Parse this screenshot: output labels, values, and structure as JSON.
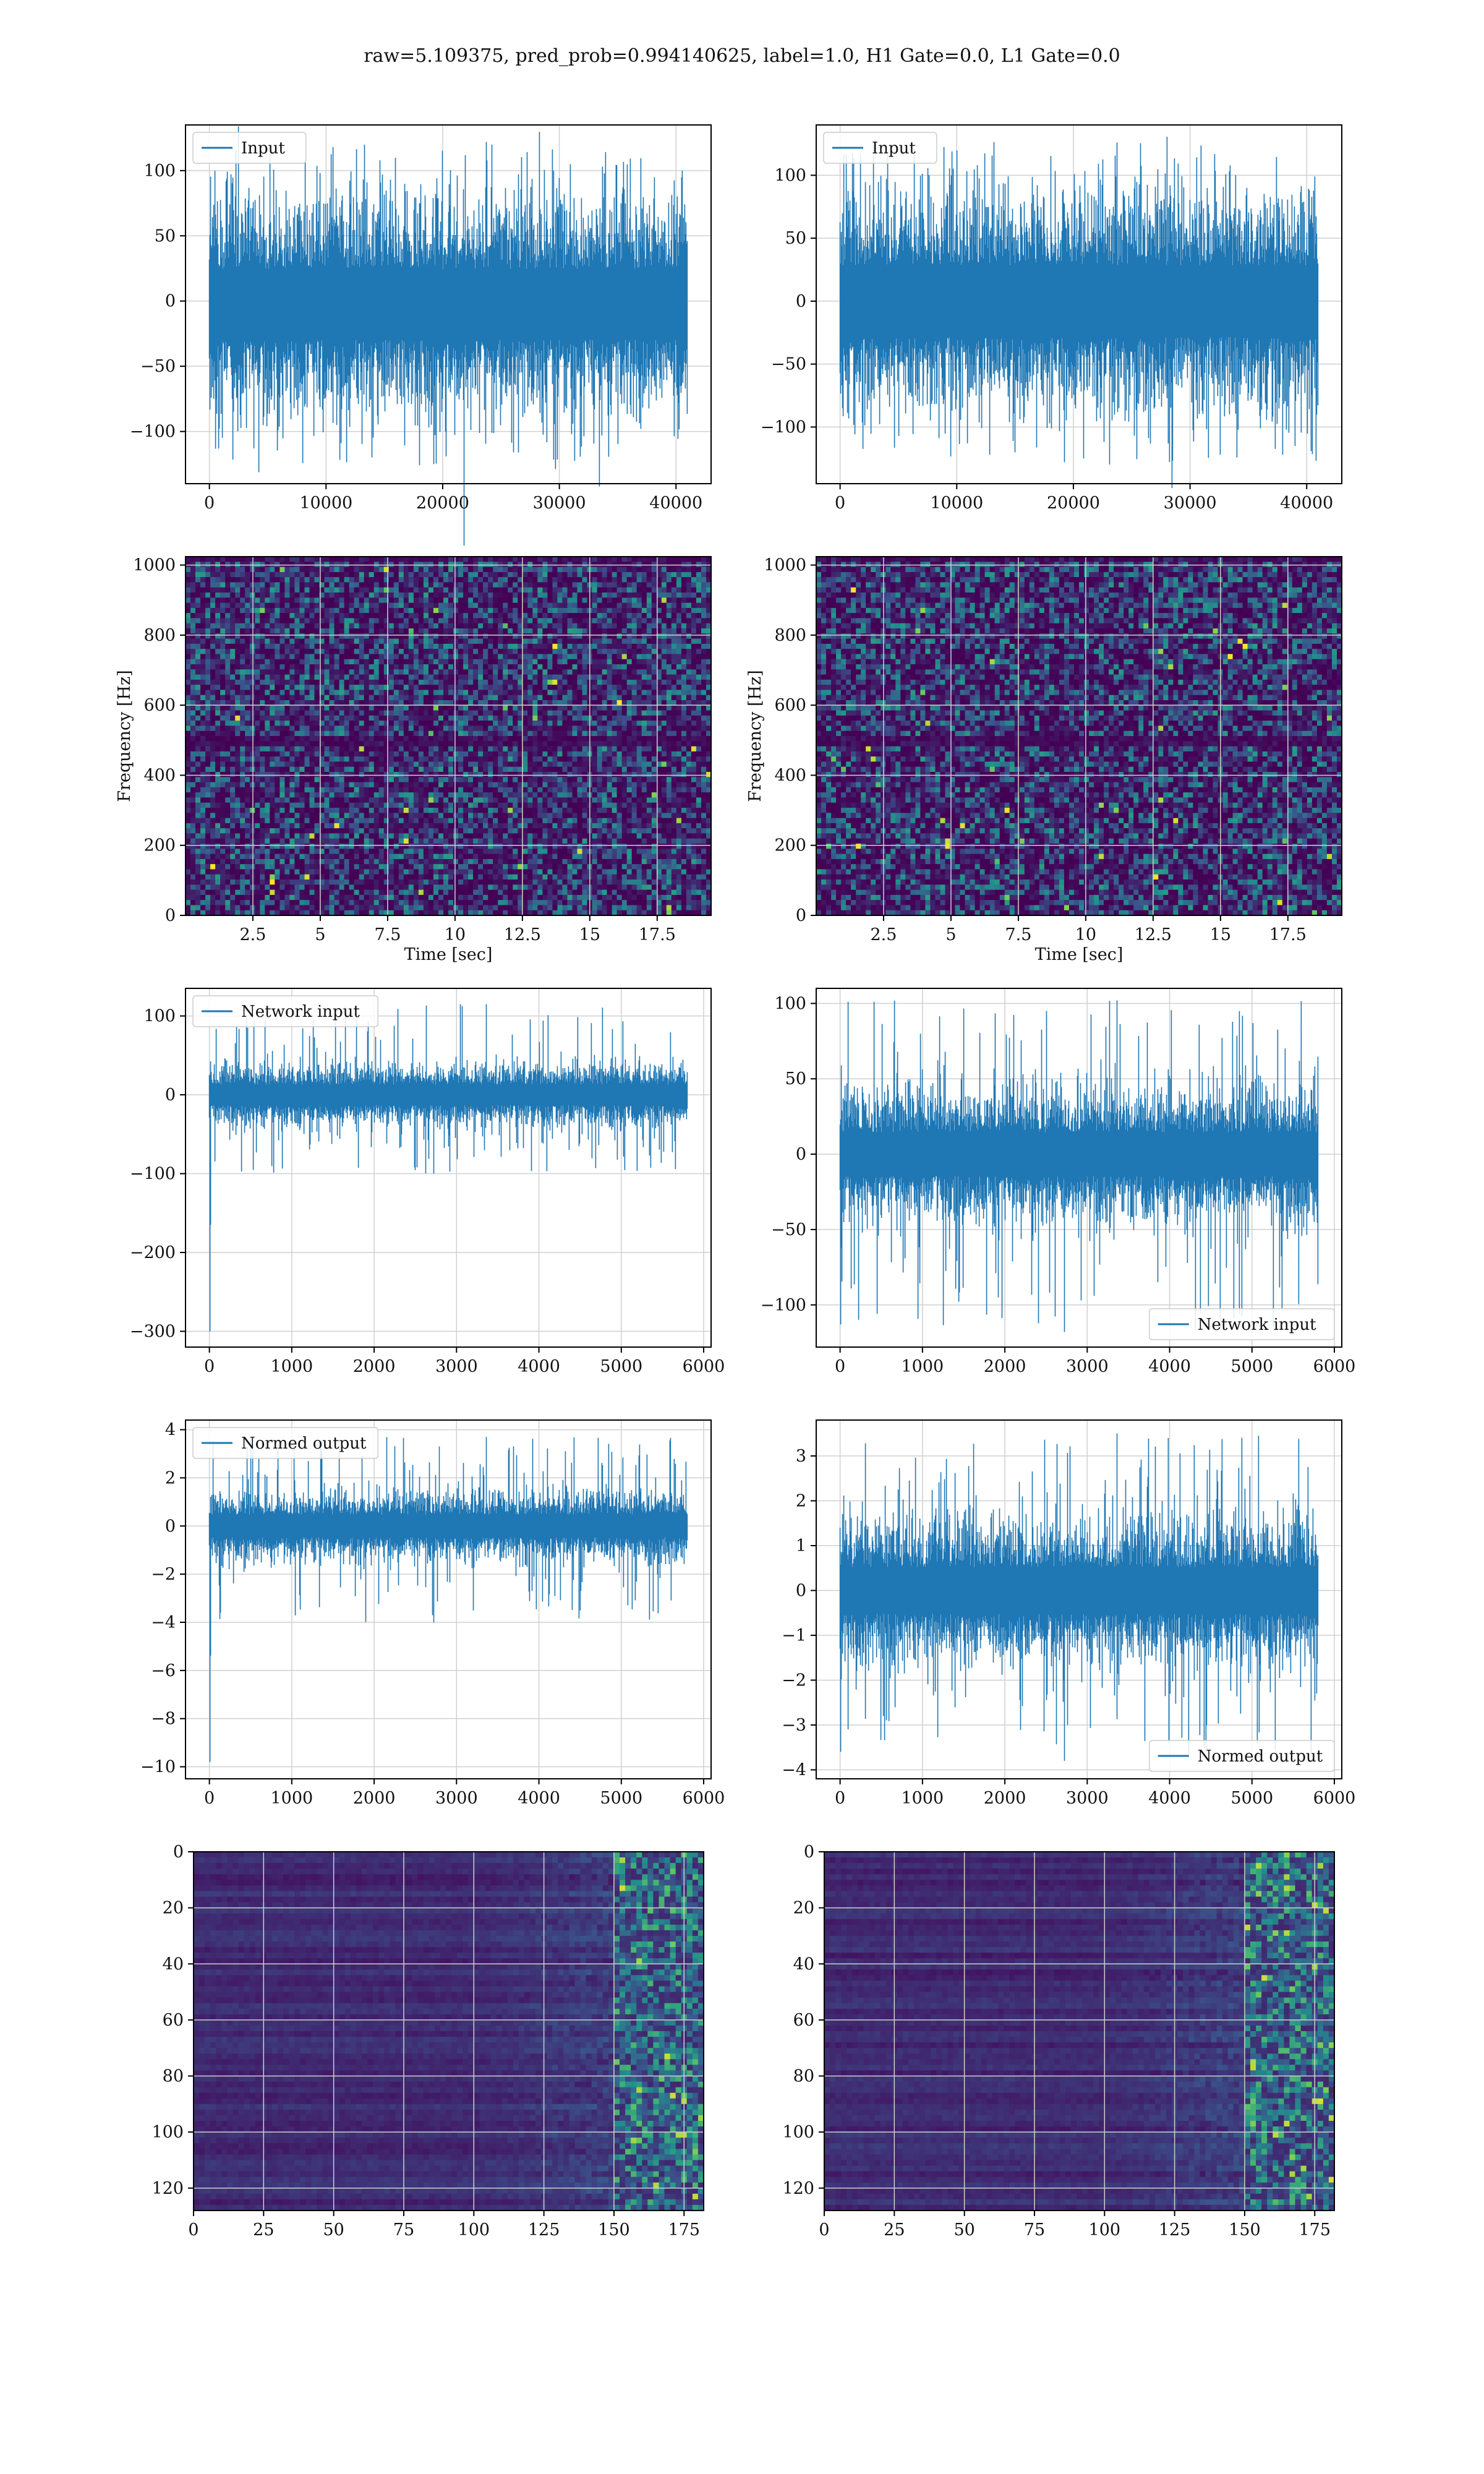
{
  "figure": {
    "title": "raw=5.109375, pred_prob=0.994140625, label=1.0, H1 Gate=0.0, L1 Gate=0.0",
    "line_color": "#1f77b4"
  },
  "chart_data": [
    {
      "id": "input-h1",
      "type": "line",
      "position": "row 1, left",
      "series": [
        {
          "name": "Input",
          "envelope_min": -125,
          "envelope_max": 122,
          "typical_band": [
            -55,
            50
          ]
        }
      ],
      "x_range": [
        0,
        40960
      ],
      "xlim": [
        -2048,
        43008
      ],
      "ylim": [
        -140,
        135
      ],
      "xticks": [
        0,
        10000,
        20000,
        30000,
        40000
      ],
      "yticks": [
        -100,
        -50,
        0,
        50,
        100
      ],
      "xlabel": "",
      "ylabel": "",
      "legend": "top-left",
      "grid": true
    },
    {
      "id": "input-l1",
      "type": "line",
      "position": "row 1, right",
      "series": [
        {
          "name": "Input",
          "envelope_min": -128,
          "envelope_max": 126,
          "typical_band": [
            -55,
            55
          ]
        }
      ],
      "x_range": [
        0,
        40960
      ],
      "xlim": [
        -2048,
        43008
      ],
      "ylim": [
        -145,
        140
      ],
      "xticks": [
        0,
        10000,
        20000,
        30000,
        40000
      ],
      "yticks": [
        -100,
        -50,
        0,
        50,
        100
      ],
      "xlabel": "",
      "ylabel": "",
      "legend": "top-left",
      "grid": true
    },
    {
      "id": "spectrogram-h1",
      "type": "heatmap",
      "position": "row 2, left",
      "xlim": [
        0,
        19.5
      ],
      "ylim": [
        0,
        1024
      ],
      "xticks": [
        2.5,
        5.0,
        7.5,
        10.0,
        12.5,
        15.0,
        17.5
      ],
      "yticks": [
        0,
        200,
        400,
        600,
        800,
        1000
      ],
      "xlabel": "Time [sec]",
      "ylabel": "Frequency [Hz]",
      "colormap": "viridis",
      "dark_band_hz": 500,
      "grid": true
    },
    {
      "id": "spectrogram-l1",
      "type": "heatmap",
      "position": "row 2, right",
      "xlim": [
        0,
        19.5
      ],
      "ylim": [
        0,
        1024
      ],
      "xticks": [
        2.5,
        5.0,
        7.5,
        10.0,
        12.5,
        15.0,
        17.5
      ],
      "yticks": [
        0,
        200,
        400,
        600,
        800,
        1000
      ],
      "xlabel": "Time [sec]",
      "ylabel": "Frequency [Hz]",
      "colormap": "viridis",
      "dark_band_hz": 500,
      "grid": true
    },
    {
      "id": "network-input-h1",
      "type": "line",
      "position": "row 3, left",
      "series": [
        {
          "name": "Network input",
          "envelope_min": -100,
          "envelope_max": 115,
          "typical_band": [
            -25,
            25
          ],
          "initial_spike": -300
        }
      ],
      "x_range": [
        0,
        5800
      ],
      "xlim": [
        -290,
        6090
      ],
      "ylim": [
        -320,
        135
      ],
      "xticks": [
        0,
        1000,
        2000,
        3000,
        4000,
        5000,
        6000
      ],
      "yticks": [
        -300,
        -200,
        -100,
        0,
        100
      ],
      "xlabel": "",
      "ylabel": "",
      "legend": "top-left",
      "grid": true
    },
    {
      "id": "network-input-l1",
      "type": "line",
      "position": "row 3, right",
      "series": [
        {
          "name": "Network input",
          "envelope_min": -118,
          "envelope_max": 102,
          "typical_band": [
            -28,
            28
          ],
          "initial_spike": -113
        }
      ],
      "x_range": [
        0,
        5800
      ],
      "xlim": [
        -290,
        6090
      ],
      "ylim": [
        -128,
        110
      ],
      "xticks": [
        0,
        1000,
        2000,
        3000,
        4000,
        5000,
        6000
      ],
      "yticks": [
        -100,
        -50,
        0,
        50,
        100
      ],
      "xlabel": "",
      "ylabel": "",
      "legend": "bottom-right",
      "grid": true
    },
    {
      "id": "normed-output-h1",
      "type": "line",
      "position": "row 4, left",
      "series": [
        {
          "name": "Normed output",
          "envelope_min": -4,
          "envelope_max": 3.7,
          "typical_band": [
            -0.9,
            0.9
          ],
          "initial_spike": -9.8
        }
      ],
      "x_range": [
        0,
        5800
      ],
      "xlim": [
        -290,
        6090
      ],
      "ylim": [
        -10.5,
        4.4
      ],
      "xticks": [
        0,
        1000,
        2000,
        3000,
        4000,
        5000,
        6000
      ],
      "yticks": [
        -10,
        -8,
        -6,
        -4,
        -2,
        0,
        2,
        4
      ],
      "xlabel": "",
      "ylabel": "",
      "legend": "top-left",
      "grid": true
    },
    {
      "id": "normed-output-l1",
      "type": "line",
      "position": "row 4, right",
      "series": [
        {
          "name": "Normed output",
          "envelope_min": -3.8,
          "envelope_max": 3.5,
          "typical_band": [
            -1,
            1
          ],
          "initial_spike": -3.6
        }
      ],
      "x_range": [
        0,
        5800
      ],
      "xlim": [
        -290,
        6090
      ],
      "ylim": [
        -4.2,
        3.8
      ],
      "xticks": [
        0,
        1000,
        2000,
        3000,
        4000,
        5000,
        6000
      ],
      "yticks": [
        -4,
        -3,
        -2,
        -1,
        0,
        1,
        2,
        3
      ],
      "xlabel": "",
      "ylabel": "",
      "legend": "bottom-right",
      "grid": true
    },
    {
      "id": "feature-map-h1",
      "type": "heatmap",
      "position": "row 5, left",
      "xlim": [
        0,
        182
      ],
      "ylim": [
        128,
        0
      ],
      "xticks": [
        0,
        25,
        50,
        75,
        100,
        125,
        150,
        175
      ],
      "yticks": [
        0,
        20,
        40,
        60,
        80,
        100,
        120
      ],
      "xlabel": "",
      "ylabel": "",
      "colormap": "viridis",
      "bright_from_x": 150,
      "grid": true
    },
    {
      "id": "feature-map-l1",
      "type": "heatmap",
      "position": "row 5, right",
      "xlim": [
        0,
        182
      ],
      "ylim": [
        128,
        0
      ],
      "xticks": [
        0,
        25,
        50,
        75,
        100,
        125,
        150,
        175
      ],
      "yticks": [
        0,
        20,
        40,
        60,
        80,
        100,
        120
      ],
      "xlabel": "",
      "ylabel": "",
      "colormap": "viridis",
      "bright_from_x": 150,
      "grid": true
    }
  ]
}
